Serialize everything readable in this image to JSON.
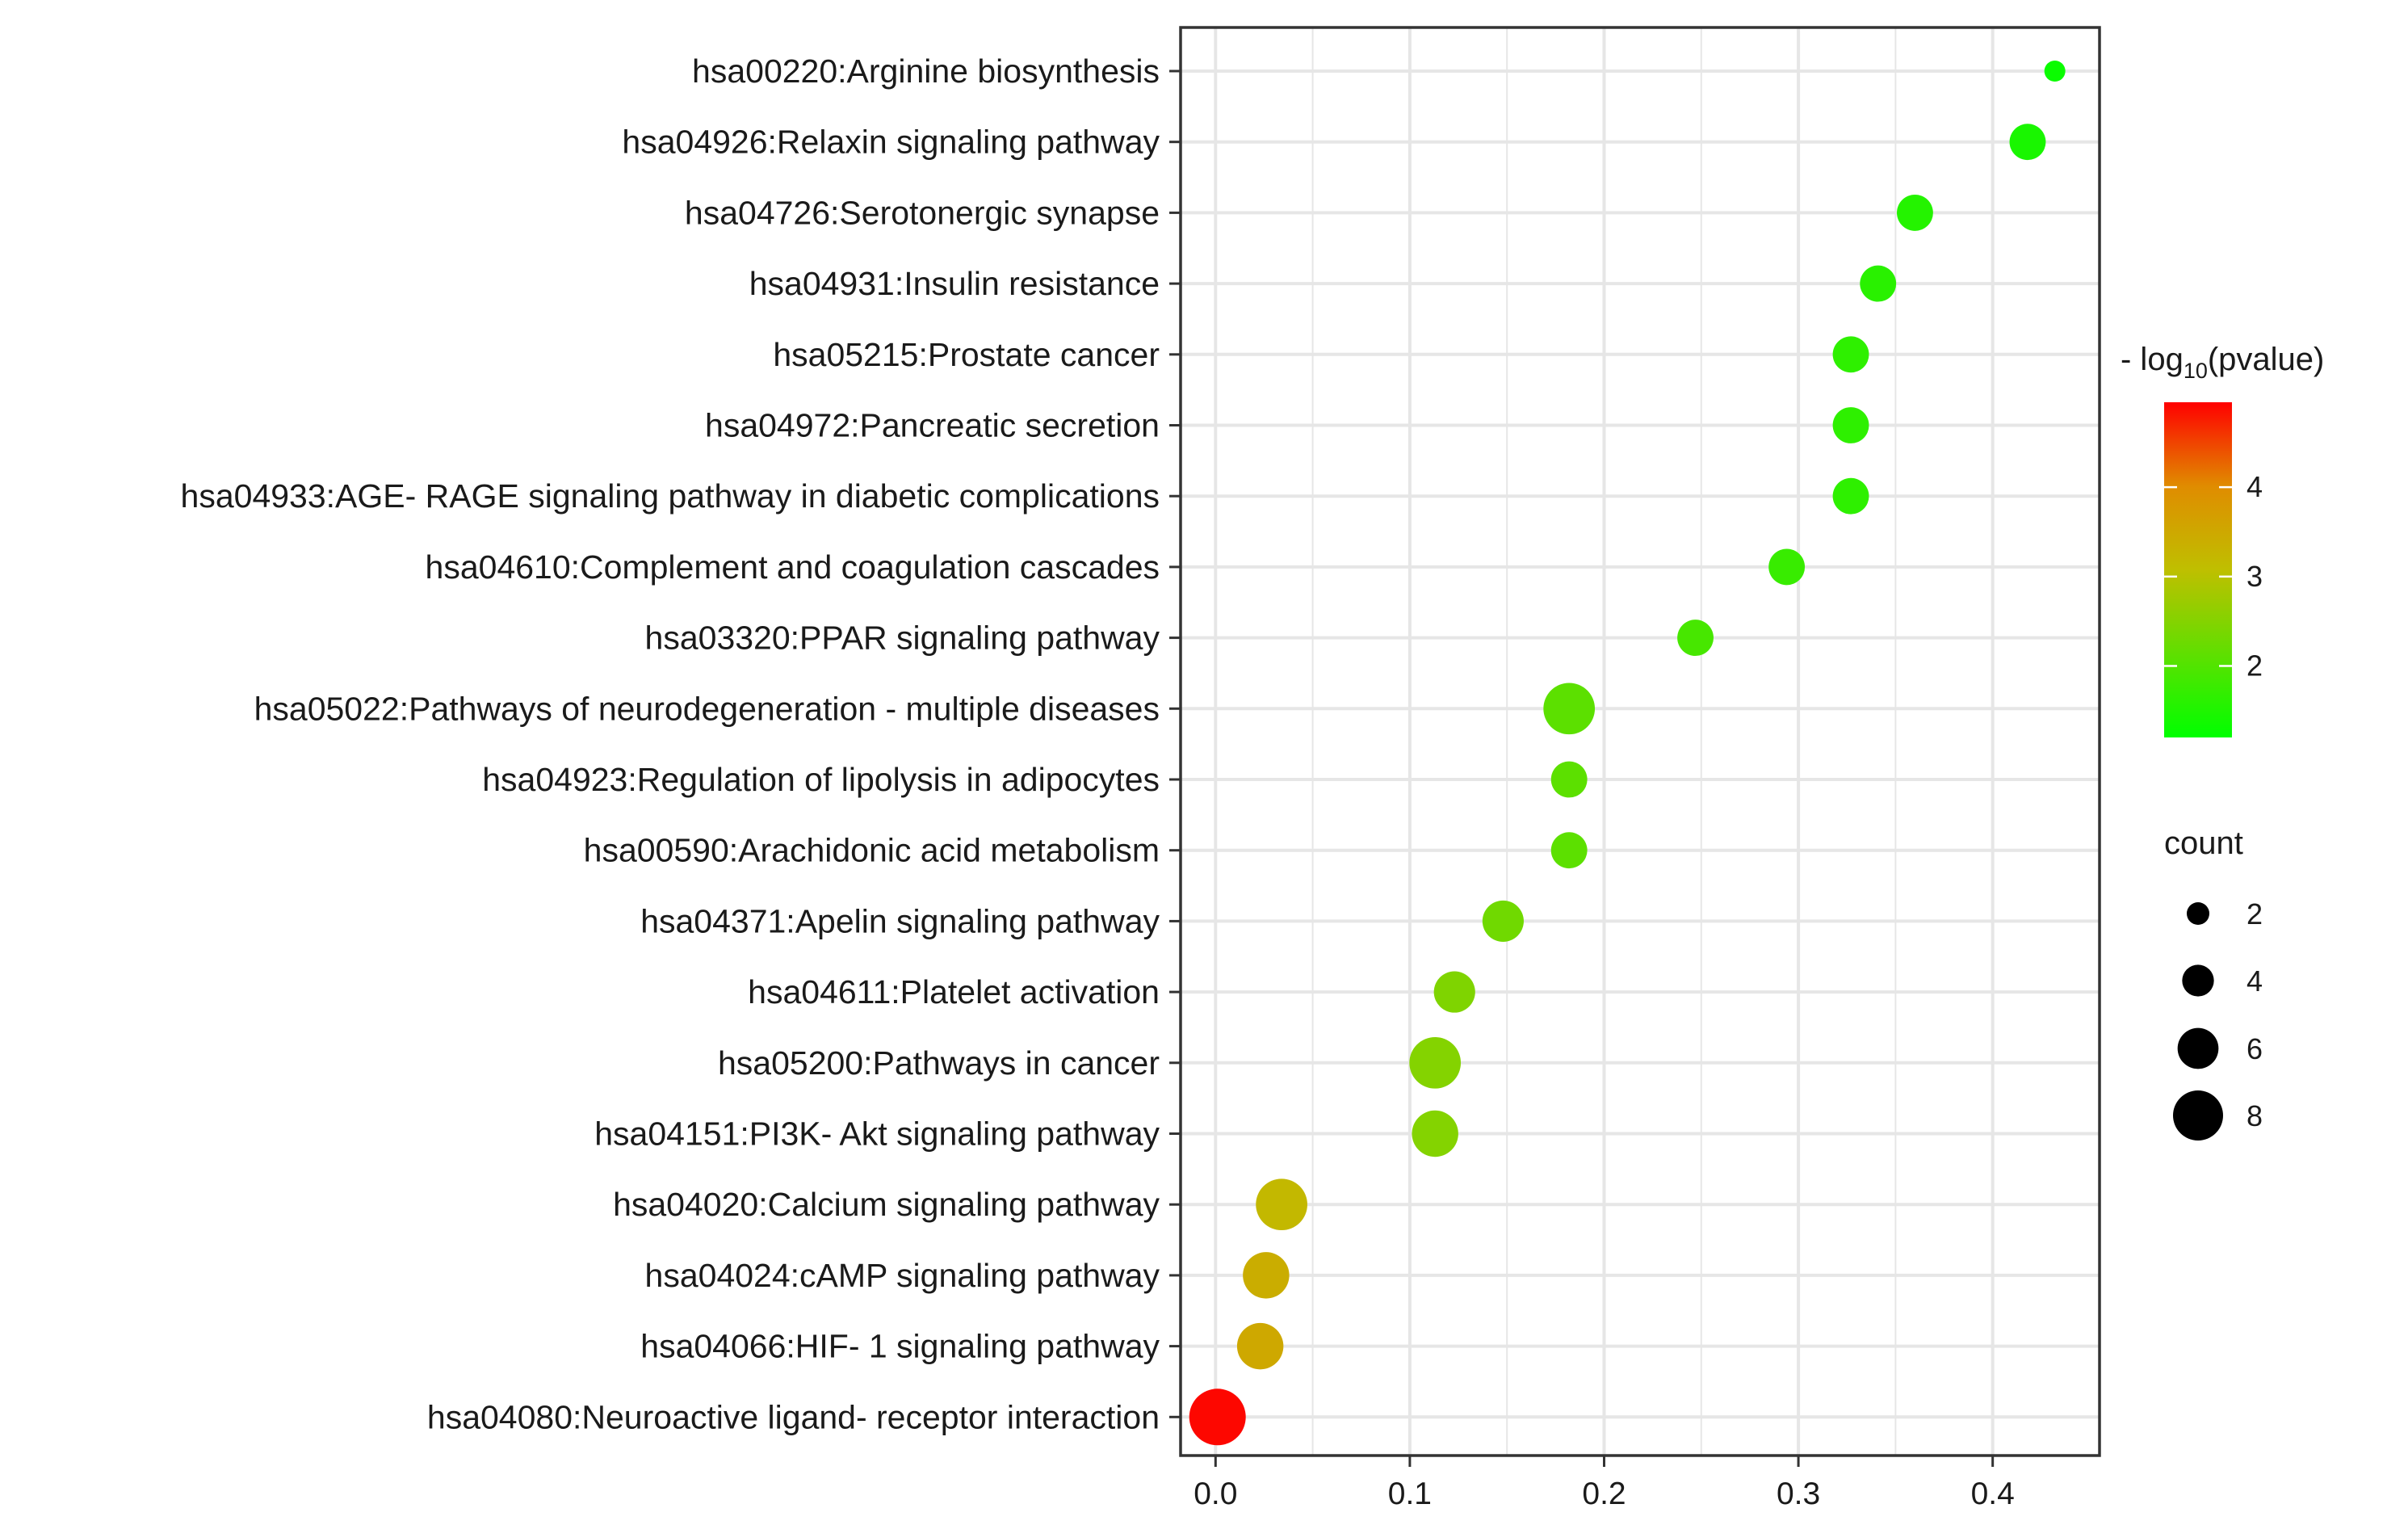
{
  "chart_data": {
    "type": "scatter",
    "title": "",
    "xlabel": "",
    "ylabel": "",
    "xlim": [
      -0.018,
      0.455
    ],
    "xticks": [
      0.0,
      0.1,
      0.2,
      0.3,
      0.4
    ],
    "xtick_labels": [
      "0.0",
      "0.1",
      "0.2",
      "0.3",
      "0.4"
    ],
    "grid": true,
    "legend_position": "right",
    "points": [
      {
        "label": "hsa00220:Arginine biosynthesis",
        "x": 0.432,
        "count": 2,
        "neglog10p": 1.3
      },
      {
        "label": "hsa04926:Relaxin signaling pathway",
        "x": 0.418,
        "count": 5,
        "neglog10p": 1.45
      },
      {
        "label": "hsa04726:Serotonergic synapse",
        "x": 0.36,
        "count": 5,
        "neglog10p": 1.55
      },
      {
        "label": "hsa04931:Insulin resistance",
        "x": 0.341,
        "count": 5,
        "neglog10p": 1.6
      },
      {
        "label": "hsa05215:Prostate cancer",
        "x": 0.327,
        "count": 5,
        "neglog10p": 1.65
      },
      {
        "label": "hsa04972:Pancreatic secretion",
        "x": 0.327,
        "count": 5,
        "neglog10p": 1.65
      },
      {
        "label": "hsa04933:AGE- RAGE signaling pathway in diabetic complications",
        "x": 0.327,
        "count": 5,
        "neglog10p": 1.65
      },
      {
        "label": "hsa04610:Complement and coagulation cascades",
        "x": 0.294,
        "count": 5,
        "neglog10p": 1.75
      },
      {
        "label": "hsa03320:PPAR signaling pathway",
        "x": 0.247,
        "count": 5,
        "neglog10p": 1.9
      },
      {
        "label": "hsa05022:Pathways of neurodegeneration -  multiple diseases",
        "x": 0.182,
        "count": 8,
        "neglog10p": 2.1
      },
      {
        "label": "hsa04923:Regulation of lipolysis in adipocytes",
        "x": 0.182,
        "count": 5,
        "neglog10p": 2.1
      },
      {
        "label": "hsa00590:Arachidonic acid metabolism",
        "x": 0.182,
        "count": 5,
        "neglog10p": 2.1
      },
      {
        "label": "hsa04371:Apelin signaling pathway",
        "x": 0.148,
        "count": 6,
        "neglog10p": 2.3
      },
      {
        "label": "hsa04611:Platelet activation",
        "x": 0.123,
        "count": 6,
        "neglog10p": 2.45
      },
      {
        "label": "hsa05200:Pathways in cancer",
        "x": 0.113,
        "count": 8,
        "neglog10p": 2.5
      },
      {
        "label": "hsa04151:PI3K- Akt signaling pathway",
        "x": 0.113,
        "count": 7,
        "neglog10p": 2.5
      },
      {
        "label": "hsa04020:Calcium signaling pathway",
        "x": 0.034,
        "count": 8,
        "neglog10p": 3.2
      },
      {
        "label": "hsa04024:cAMP signaling pathway",
        "x": 0.026,
        "count": 7,
        "neglog10p": 3.4
      },
      {
        "label": "hsa04066:HIF- 1 signaling pathway",
        "x": 0.023,
        "count": 7,
        "neglog10p": 3.5
      },
      {
        "label": "hsa04080:Neuroactive ligand- receptor interaction",
        "x": 0.001,
        "count": 9,
        "neglog10p": 4.9
      }
    ],
    "color_legend": {
      "title_prefix": "- log",
      "title_subscript": "10",
      "title_suffix": "(pvalue)",
      "range": [
        1.2,
        4.95
      ],
      "ticks": [
        2,
        3,
        4
      ],
      "tick_labels": [
        "2",
        "3",
        "4"
      ],
      "low_color": "#00ff00",
      "high_color": "#ff0000"
    },
    "size_legend": {
      "title": "count",
      "values": [
        2,
        4,
        6,
        8
      ],
      "labels": [
        "2",
        "4",
        "6",
        "8"
      ],
      "marker_color": "#000000"
    },
    "colors": {
      "grid": "#e6e6e6",
      "frame": "#333333",
      "text": "#1a1a1a"
    }
  }
}
